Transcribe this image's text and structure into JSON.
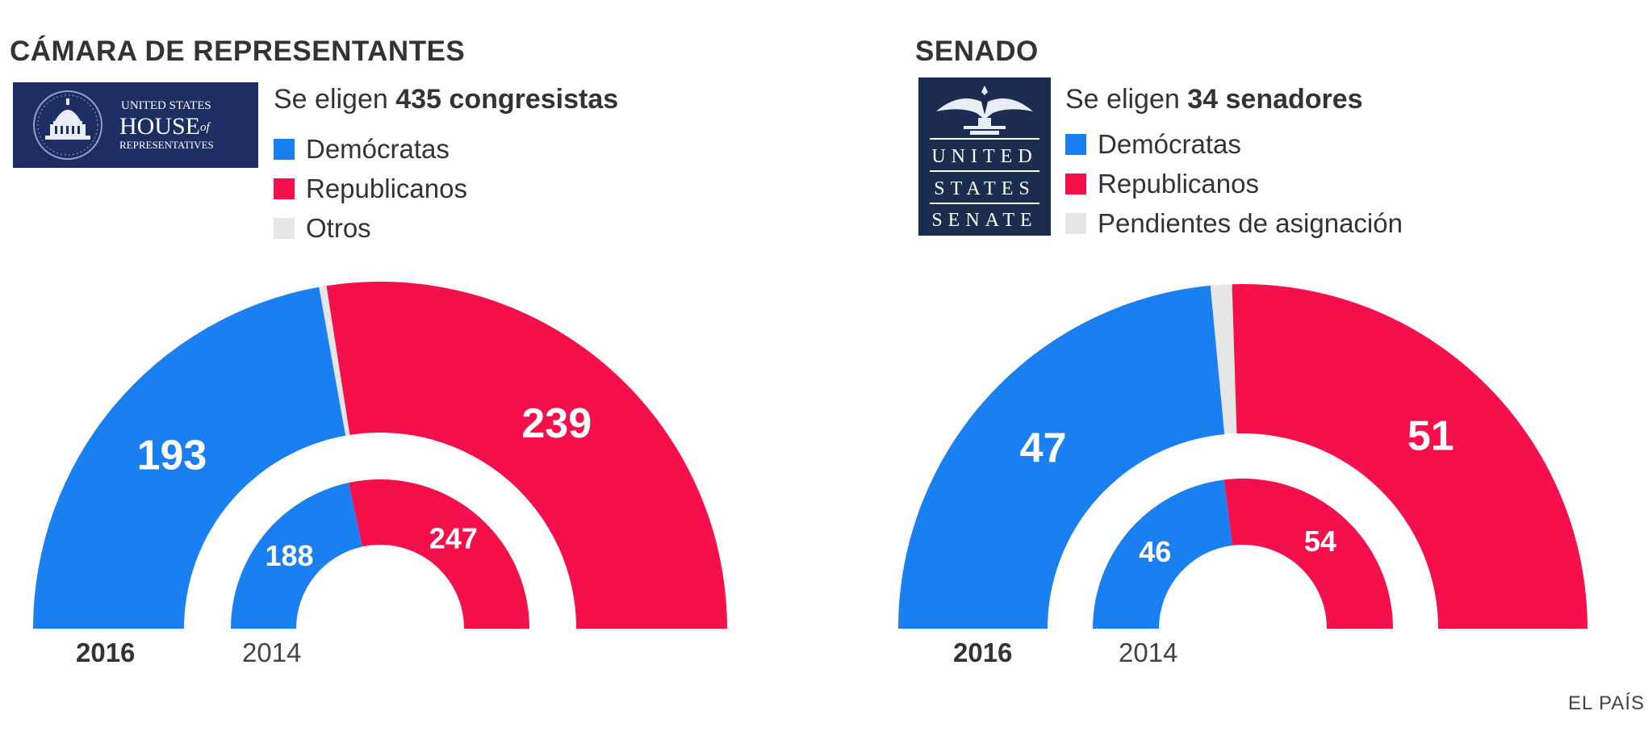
{
  "colors": {
    "democrats": "#1a7ff1",
    "republicans": "#f50f4b",
    "others": "#e6e6e6",
    "logo_bg": "#1d2e63",
    "senate_logo_bg": "#1b2c4f"
  },
  "house": {
    "title": "CÁMARA DE REPRESENTANTES",
    "intro_prefix": "Se eligen ",
    "intro_bold": "435 congresistas",
    "logo_text": {
      "line1": "UNITED STATES",
      "line2": "HOUSE",
      "line2_of": "of",
      "line3": "REPRESENTATIVES"
    },
    "legend": [
      {
        "label": "Demócratas",
        "color": "#1a7ff1"
      },
      {
        "label": "Republicanos",
        "color": "#f50f4b"
      },
      {
        "label": "Otros",
        "color": "#e6e6e6"
      }
    ],
    "year_main": "2016",
    "year_prev": "2014"
  },
  "senate": {
    "title": "SENADO",
    "intro_prefix": "Se eligen ",
    "intro_bold": "34 senadores",
    "logo_text": {
      "line1": "UNITED",
      "line2": "STATES",
      "line3": "SENATE"
    },
    "legend": [
      {
        "label": "Demócratas",
        "color": "#1a7ff1"
      },
      {
        "label": "Republicanos",
        "color": "#f50f4b"
      },
      {
        "label": "Pendientes de asignación",
        "color": "#e6e6e6"
      }
    ],
    "year_main": "2016",
    "year_prev": "2014"
  },
  "credit": "EL PAÍS",
  "chart_data": [
    {
      "type": "pie",
      "subtype": "semicircle-donut",
      "title": "CÁMARA DE REPRESENTANTES",
      "rings": [
        {
          "name": "2016",
          "total": 435,
          "slices": [
            {
              "label": "Demócratas",
              "value": 193,
              "color": "#1a7ff1"
            },
            {
              "label": "Otros",
              "value": 3,
              "color": "#e6e6e6"
            },
            {
              "label": "Republicanos",
              "value": 239,
              "color": "#f50f4b"
            }
          ]
        },
        {
          "name": "2014",
          "total": 435,
          "slices": [
            {
              "label": "Demócratas",
              "value": 188,
              "color": "#1a7ff1"
            },
            {
              "label": "Republicanos",
              "value": 247,
              "color": "#f50f4b"
            }
          ]
        }
      ]
    },
    {
      "type": "pie",
      "subtype": "semicircle-donut",
      "title": "SENADO",
      "rings": [
        {
          "name": "2016",
          "total": 100,
          "slices": [
            {
              "label": "Demócratas",
              "value": 47,
              "color": "#1a7ff1"
            },
            {
              "label": "Pendientes de asignación",
              "value": 2,
              "color": "#e6e6e6"
            },
            {
              "label": "Republicanos",
              "value": 51,
              "color": "#f50f4b"
            }
          ]
        },
        {
          "name": "2014",
          "total": 100,
          "slices": [
            {
              "label": "Demócratas",
              "value": 46,
              "color": "#1a7ff1"
            },
            {
              "label": "Republicanos",
              "value": 54,
              "color": "#f50f4b"
            }
          ]
        }
      ]
    }
  ]
}
